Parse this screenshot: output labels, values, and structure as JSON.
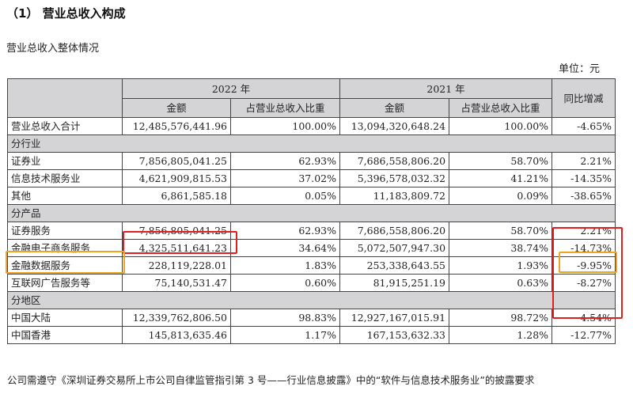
{
  "heading": "（1） 营业总收入构成",
  "subheading": "营业总收入整体情况",
  "unit": "单位：元",
  "table": {
    "year_2022": "2022 年",
    "year_2021": "2021 年",
    "col_amount": "金额",
    "col_ratio": "占营业总收入比重",
    "col_yoy": "同比增减",
    "total": {
      "label": "营业总收入合计",
      "a2022": "12,485,576,441.96",
      "r2022": "100.00%",
      "a2021": "13,094,320,648.24",
      "r2021": "100.00%",
      "yoy": "-4.65%"
    },
    "sections": [
      {
        "title": "分行业",
        "rows": [
          {
            "label": "证券业",
            "a2022": "7,856,805,041.25",
            "r2022": "62.93%",
            "a2021": "7,686,558,806.20",
            "r2021": "58.70%",
            "yoy": "2.21%"
          },
          {
            "label": "信息技术服务业",
            "a2022": "4,621,909,815.53",
            "r2022": "37.02%",
            "a2021": "5,396,578,032.32",
            "r2021": "41.21%",
            "yoy": "-14.35%"
          },
          {
            "label": "其他",
            "a2022": "6,861,585.18",
            "r2022": "0.05%",
            "a2021": "11,183,809.72",
            "r2021": "0.09%",
            "yoy": "-38.65%"
          }
        ]
      },
      {
        "title": "分产品",
        "rows": [
          {
            "label": "证券服务",
            "a2022": "7,856,805,041.25",
            "r2022": "62.93%",
            "a2021": "7,686,558,806.20",
            "r2021": "58.70%",
            "yoy": "2.21%"
          },
          {
            "label": "金融电子商务服务",
            "a2022": "4,325,511,641.23",
            "r2022": "34.64%",
            "a2021": "5,072,507,947.30",
            "r2021": "38.74%",
            "yoy": "-14.73%"
          },
          {
            "label": "金融数据服务",
            "a2022": "228,119,228.01",
            "r2022": "1.83%",
            "a2021": "253,338,643.55",
            "r2021": "1.93%",
            "yoy": "-9.95%"
          },
          {
            "label": "互联网广告服务等",
            "a2022": "75,140,531.47",
            "r2022": "0.60%",
            "a2021": "81,915,251.19",
            "r2021": "0.63%",
            "yoy": "-8.27%"
          }
        ]
      },
      {
        "title": "分地区",
        "rows": [
          {
            "label": "中国大陆",
            "a2022": "12,339,762,806.50",
            "r2022": "98.83%",
            "a2021": "12,927,167,015.91",
            "r2021": "98.72%",
            "yoy": "-4.54%"
          },
          {
            "label": "中国香港",
            "a2022": "145,813,635.46",
            "r2022": "1.17%",
            "a2021": "167,153,632.33",
            "r2021": "1.28%",
            "yoy": "-12.77%"
          }
        ]
      }
    ]
  },
  "note": "公司需遵守《深圳证券交易所上市公司自律监管指引第 3 号——行业信息披露》中的“软件与信息技术服务业”的披露要求",
  "colors": {
    "highlight_red": "#e02020",
    "highlight_orange": "#f0a520",
    "header_bg": "#d4d4d6"
  }
}
